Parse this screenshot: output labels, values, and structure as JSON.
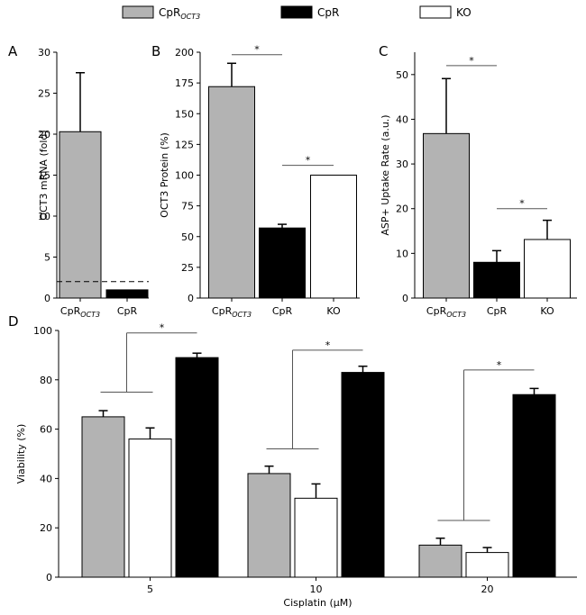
{
  "legend": [
    {
      "label": "CpR",
      "sub": "OCT3",
      "color": "#b3b3b3"
    },
    {
      "label": "CpR",
      "sub": "",
      "color": "#000000"
    },
    {
      "label": "KO",
      "sub": "",
      "color": "#ffffff"
    }
  ],
  "chart_data": [
    {
      "panel": "A",
      "type": "bar",
      "ylabel": "OCT3 mRNA (fold)",
      "ylim": [
        0,
        30
      ],
      "yticks": [
        0,
        5,
        10,
        15,
        20,
        25,
        30
      ],
      "categories": [
        {
          "label": "CpR",
          "sub": "OCT3",
          "color": "#b3b3b3"
        },
        {
          "label": "CpR",
          "sub": "",
          "color": "#000000"
        }
      ],
      "values": [
        20.3,
        1.0
      ],
      "errors": [
        7.2,
        null
      ],
      "reference_line": 2.0
    },
    {
      "panel": "B",
      "type": "bar",
      "ylabel": "OCT3 Protein (%)",
      "ylim": [
        0,
        200
      ],
      "yticks": [
        0,
        25,
        50,
        75,
        100,
        125,
        150,
        175,
        200
      ],
      "categories": [
        {
          "label": "CpR",
          "sub": "OCT3",
          "color": "#b3b3b3"
        },
        {
          "label": "CpR",
          "sub": "",
          "color": "#000000"
        },
        {
          "label": "KO",
          "sub": "",
          "color": "#ffffff"
        }
      ],
      "values": [
        172,
        57,
        100
      ],
      "errors": [
        19,
        3,
        null
      ],
      "significance": [
        {
          "from": 0,
          "to": 1,
          "y": 198,
          "label": "*"
        },
        {
          "from": 1,
          "to": 2,
          "y": 108,
          "label": "*"
        }
      ]
    },
    {
      "panel": "C",
      "type": "bar",
      "ylabel": "ASP+ Uptake Rate (a.u.)",
      "ylim": [
        0,
        55
      ],
      "yticks": [
        0,
        10,
        20,
        30,
        40,
        50
      ],
      "categories": [
        {
          "label": "CpR",
          "sub": "OCT3",
          "color": "#b3b3b3"
        },
        {
          "label": "CpR",
          "sub": "",
          "color": "#000000"
        },
        {
          "label": "KO",
          "sub": "",
          "color": "#ffffff"
        }
      ],
      "values": [
        36.8,
        8.0,
        13.1
      ],
      "errors": [
        12.3,
        2.6,
        4.3
      ],
      "significance": [
        {
          "from": 0,
          "to": 1,
          "y": 52,
          "label": "*"
        },
        {
          "from": 1,
          "to": 2,
          "y": 20,
          "label": "*"
        }
      ]
    },
    {
      "panel": "D",
      "type": "bar",
      "xlabel": "Cisplatin (µM)",
      "ylabel": "Viability (%)",
      "ylim": [
        0,
        100
      ],
      "yticks": [
        0,
        20,
        40,
        60,
        80,
        100
      ],
      "categories": [
        "5",
        "10",
        "20"
      ],
      "series": [
        {
          "name": "CpR_OCT3",
          "color": "#b3b3b3",
          "values": [
            65,
            42,
            13
          ],
          "errors": [
            2.5,
            3,
            2.8
          ]
        },
        {
          "name": "KO",
          "color": "#ffffff",
          "values": [
            56,
            32,
            10
          ],
          "errors": [
            4.5,
            5.8,
            2
          ]
        },
        {
          "name": "CpR",
          "color": "#000000",
          "values": [
            89,
            83,
            74
          ],
          "errors": [
            1.8,
            2.5,
            2.5
          ]
        }
      ],
      "significance": [
        {
          "group": 0,
          "from_level": 75,
          "y": 99,
          "label": "*"
        },
        {
          "group": 1,
          "from_level": 52,
          "y": 92,
          "label": "*"
        },
        {
          "group": 2,
          "from_level": 23,
          "y": 84,
          "label": "*"
        }
      ]
    }
  ]
}
